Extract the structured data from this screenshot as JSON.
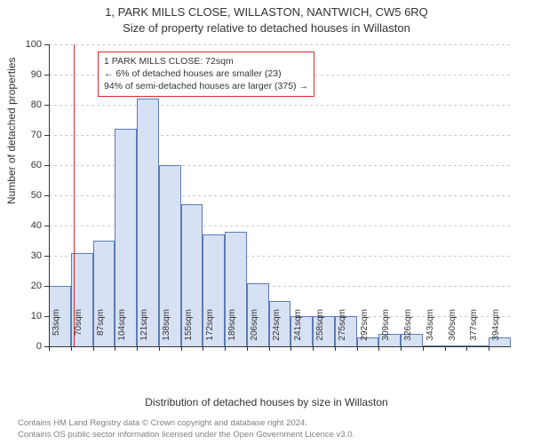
{
  "title_line1": "1, PARK MILLS CLOSE, WILLASTON, NANTWICH, CW5 6RQ",
  "title_line2": "Size of property relative to detached houses in Willaston",
  "ylabel": "Number of detached properties",
  "xlabel": "Distribution of detached houses by size in Willaston",
  "ylim": [
    0,
    100
  ],
  "ytick_step": 10,
  "yticks": [
    0,
    10,
    20,
    30,
    40,
    50,
    60,
    70,
    80,
    90,
    100
  ],
  "x_start": 53,
  "x_step": 17,
  "xticks": [
    "53sqm",
    "70sqm",
    "87sqm",
    "104sqm",
    "121sqm",
    "138sqm",
    "155sqm",
    "172sqm",
    "189sqm",
    "206sqm",
    "224sqm",
    "241sqm",
    "258sqm",
    "275sqm",
    "292sqm",
    "309sqm",
    "326sqm",
    "343sqm",
    "360sqm",
    "377sqm",
    "394sqm"
  ],
  "bars": [
    20,
    31,
    35,
    72,
    82,
    60,
    47,
    37,
    38,
    21,
    15,
    10,
    10,
    10,
    3,
    4,
    4,
    0,
    0,
    0,
    3
  ],
  "bar_fill": "#d7e1f4",
  "bar_stroke": "#5b7bb8",
  "grid_color": "#cccccc",
  "axis_color": "#333333",
  "marker_value": 72,
  "marker_color": "#d62728",
  "annotation": {
    "line1": "1 PARK MILLS CLOSE: 72sqm",
    "line2": "← 6% of detached houses are smaller (23)",
    "line3": "94% of semi-detached houses are larger (375) →",
    "border_color": "#d62728"
  },
  "footer_line1": "Contains HM Land Registry data © Crown copyright and database right 2024.",
  "footer_line2": "Contains OS public sector information licensed under the Open Government Licence v3.0."
}
